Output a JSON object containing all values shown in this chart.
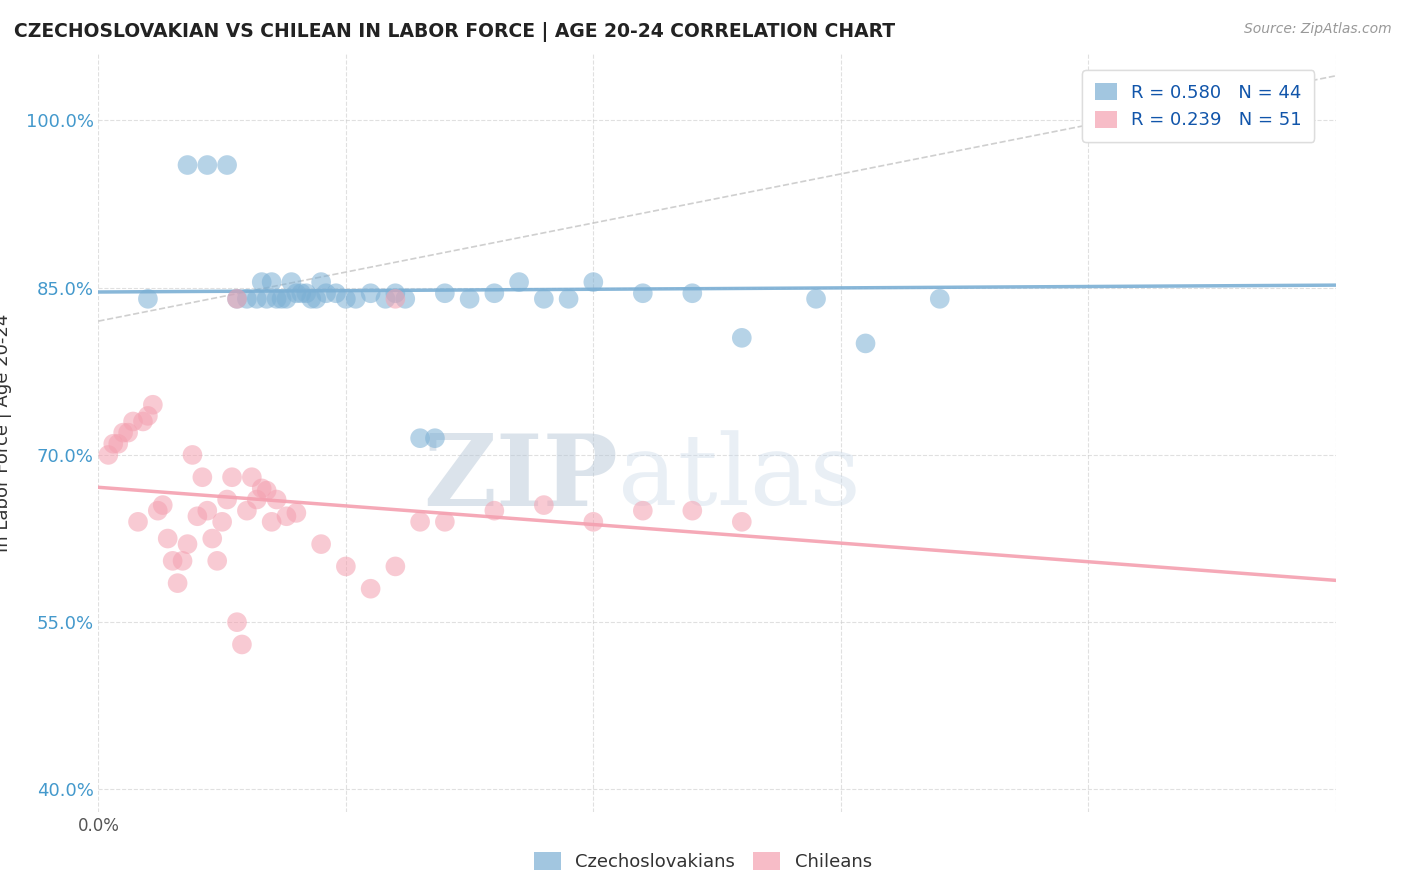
{
  "title": "CZECHOSLOVAKIAN VS CHILEAN IN LABOR FORCE | AGE 20-24 CORRELATION CHART",
  "source": "Source: ZipAtlas.com",
  "ylabel": "In Labor Force | Age 20-24",
  "xlim": [
    0.0,
    0.25
  ],
  "ylim": [
    0.38,
    1.06
  ],
  "yticks": [
    0.4,
    0.55,
    0.7,
    0.85,
    1.0
  ],
  "ytick_labels": [
    "40.0%",
    "55.0%",
    "70.0%",
    "85.0%",
    "100.0%"
  ],
  "xtick_labels": [
    "0.0%",
    "",
    "",
    "",
    "",
    ""
  ],
  "R_czech": 0.58,
  "N_czech": 44,
  "R_chile": 0.239,
  "N_chile": 51,
  "czech_color": "#7BAFD4",
  "chile_color": "#F4A0B0",
  "background_color": "#FFFFFF",
  "grid_color": "#CCCCCC",
  "czech_x": [
    0.01,
    0.018,
    0.022,
    0.026,
    0.028,
    0.03,
    0.032,
    0.033,
    0.034,
    0.035,
    0.036,
    0.037,
    0.038,
    0.039,
    0.04,
    0.041,
    0.042,
    0.043,
    0.044,
    0.045,
    0.046,
    0.048,
    0.05,
    0.052,
    0.055,
    0.058,
    0.06,
    0.062,
    0.065,
    0.068,
    0.07,
    0.075,
    0.08,
    0.085,
    0.09,
    0.095,
    0.1,
    0.11,
    0.12,
    0.13,
    0.145,
    0.155,
    0.17,
    0.22
  ],
  "czech_y": [
    0.84,
    0.96,
    0.96,
    0.96,
    0.84,
    0.84,
    0.84,
    0.855,
    0.84,
    0.855,
    0.84,
    0.84,
    0.84,
    0.855,
    0.845,
    0.845,
    0.845,
    0.84,
    0.84,
    0.855,
    0.845,
    0.845,
    0.84,
    0.84,
    0.845,
    0.84,
    0.845,
    0.84,
    0.715,
    0.715,
    0.845,
    0.84,
    0.845,
    0.855,
    0.84,
    0.84,
    0.855,
    0.845,
    0.845,
    0.805,
    0.84,
    0.8,
    0.84,
    1.0
  ],
  "chile_x": [
    0.002,
    0.003,
    0.004,
    0.005,
    0.006,
    0.007,
    0.008,
    0.009,
    0.01,
    0.011,
    0.012,
    0.013,
    0.014,
    0.015,
    0.016,
    0.017,
    0.018,
    0.019,
    0.02,
    0.021,
    0.022,
    0.023,
    0.024,
    0.025,
    0.026,
    0.027,
    0.028,
    0.029,
    0.03,
    0.031,
    0.032,
    0.033,
    0.034,
    0.035,
    0.036,
    0.038,
    0.04,
    0.045,
    0.05,
    0.055,
    0.06,
    0.065,
    0.07,
    0.08,
    0.09,
    0.1,
    0.11,
    0.12,
    0.13,
    0.06,
    0.028
  ],
  "chile_y": [
    0.7,
    0.71,
    0.71,
    0.72,
    0.72,
    0.73,
    0.64,
    0.73,
    0.735,
    0.745,
    0.65,
    0.655,
    0.625,
    0.605,
    0.585,
    0.605,
    0.62,
    0.7,
    0.645,
    0.68,
    0.65,
    0.625,
    0.605,
    0.64,
    0.66,
    0.68,
    0.55,
    0.53,
    0.65,
    0.68,
    0.66,
    0.67,
    0.668,
    0.64,
    0.66,
    0.645,
    0.648,
    0.62,
    0.6,
    0.58,
    0.6,
    0.64,
    0.64,
    0.65,
    0.655,
    0.64,
    0.65,
    0.65,
    0.64,
    0.84,
    0.84
  ]
}
